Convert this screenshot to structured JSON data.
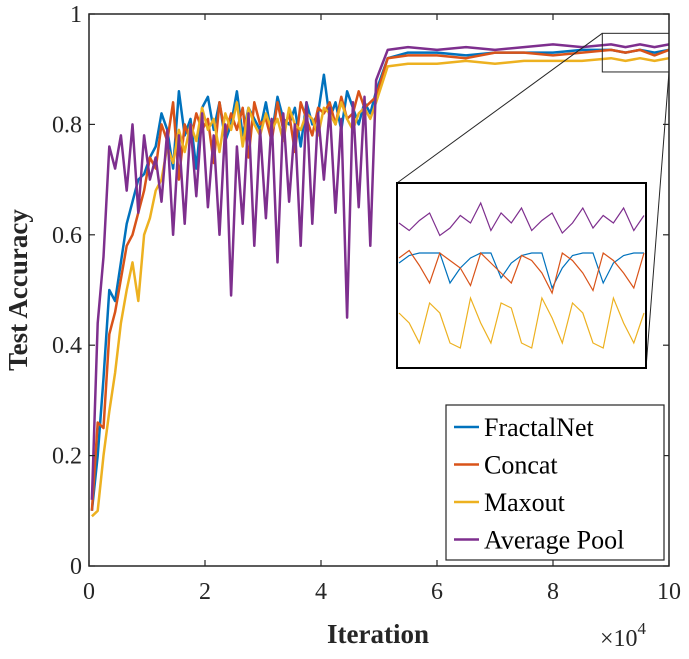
{
  "chart_data": {
    "type": "line",
    "xlabel": "Iteration",
    "ylabel": "Test Accuracy",
    "x_multiplier_label": "×10",
    "x_multiplier_exponent": "4",
    "xlim": [
      0,
      10
    ],
    "ylim": [
      0,
      1
    ],
    "x_ticks": [
      0,
      2,
      4,
      6,
      8,
      10
    ],
    "x_tick_labels": [
      "0",
      "2",
      "4",
      "6",
      "8",
      "10"
    ],
    "y_ticks": [
      0,
      0.2,
      0.4,
      0.6,
      0.8,
      1
    ],
    "y_tick_labels": [
      "0",
      "0.2",
      "0.4",
      "0.6",
      "0.8",
      "1"
    ],
    "legend_position": "bottom-right",
    "zoom_region_x": [
      8.85,
      10
    ],
    "zoom_region_y": [
      0.895,
      0.965
    ],
    "series": [
      {
        "name": "FractalNet",
        "color": "#0072BD",
        "x": [
          0.05,
          0.15,
          0.25,
          0.35,
          0.45,
          0.55,
          0.65,
          0.75,
          0.85,
          0.95,
          1.05,
          1.15,
          1.25,
          1.35,
          1.45,
          1.55,
          1.65,
          1.75,
          1.85,
          1.95,
          2.05,
          2.15,
          2.25,
          2.35,
          2.45,
          2.55,
          2.65,
          2.75,
          2.85,
          2.95,
          3.05,
          3.15,
          3.25,
          3.35,
          3.45,
          3.55,
          3.65,
          3.75,
          3.85,
          3.95,
          4.05,
          4.15,
          4.25,
          4.35,
          4.45,
          4.55,
          4.65,
          4.75,
          4.85,
          4.95,
          5.15,
          5.5,
          6,
          6.5,
          7,
          7.5,
          8,
          8.5,
          9,
          9.25,
          9.5,
          9.75,
          10
        ],
        "values": [
          0.1,
          0.2,
          0.34,
          0.5,
          0.48,
          0.55,
          0.62,
          0.66,
          0.7,
          0.71,
          0.74,
          0.76,
          0.82,
          0.79,
          0.72,
          0.86,
          0.78,
          0.81,
          0.72,
          0.83,
          0.85,
          0.79,
          0.84,
          0.77,
          0.8,
          0.86,
          0.78,
          0.83,
          0.81,
          0.79,
          0.84,
          0.78,
          0.85,
          0.81,
          0.8,
          0.83,
          0.76,
          0.84,
          0.8,
          0.82,
          0.89,
          0.81,
          0.84,
          0.79,
          0.86,
          0.83,
          0.8,
          0.84,
          0.82,
          0.86,
          0.92,
          0.93,
          0.93,
          0.925,
          0.93,
          0.93,
          0.93,
          0.935,
          0.935,
          0.93,
          0.935,
          0.93,
          0.935
        ]
      },
      {
        "name": "Concat",
        "color": "#D95319",
        "x": [
          0.05,
          0.15,
          0.25,
          0.35,
          0.45,
          0.55,
          0.65,
          0.75,
          0.85,
          0.95,
          1.05,
          1.15,
          1.25,
          1.35,
          1.45,
          1.55,
          1.65,
          1.75,
          1.85,
          1.95,
          2.05,
          2.15,
          2.25,
          2.35,
          2.45,
          2.55,
          2.65,
          2.75,
          2.85,
          2.95,
          3.05,
          3.15,
          3.25,
          3.35,
          3.45,
          3.55,
          3.65,
          3.75,
          3.85,
          3.95,
          4.05,
          4.15,
          4.25,
          4.35,
          4.45,
          4.55,
          4.65,
          4.75,
          4.85,
          4.95,
          5.15,
          5.5,
          6,
          6.5,
          7,
          7.5,
          8,
          8.5,
          9,
          9.25,
          9.5,
          9.75,
          10
        ],
        "values": [
          0.1,
          0.26,
          0.25,
          0.42,
          0.46,
          0.52,
          0.58,
          0.6,
          0.64,
          0.68,
          0.74,
          0.72,
          0.8,
          0.77,
          0.84,
          0.7,
          0.8,
          0.77,
          0.82,
          0.79,
          0.81,
          0.73,
          0.84,
          0.78,
          0.82,
          0.79,
          0.83,
          0.74,
          0.84,
          0.8,
          0.81,
          0.77,
          0.84,
          0.79,
          0.82,
          0.75,
          0.84,
          0.81,
          0.78,
          0.83,
          0.82,
          0.84,
          0.8,
          0.85,
          0.81,
          0.82,
          0.86,
          0.83,
          0.84,
          0.85,
          0.92,
          0.925,
          0.925,
          0.92,
          0.93,
          0.93,
          0.925,
          0.93,
          0.935,
          0.93,
          0.935,
          0.925,
          0.935
        ]
      },
      {
        "name": "Maxout",
        "color": "#EDB120",
        "x": [
          0.05,
          0.15,
          0.25,
          0.35,
          0.45,
          0.55,
          0.65,
          0.75,
          0.85,
          0.95,
          1.05,
          1.15,
          1.25,
          1.35,
          1.45,
          1.55,
          1.65,
          1.75,
          1.85,
          1.95,
          2.05,
          2.15,
          2.25,
          2.35,
          2.45,
          2.55,
          2.65,
          2.75,
          2.85,
          2.95,
          3.05,
          3.15,
          3.25,
          3.35,
          3.45,
          3.55,
          3.65,
          3.75,
          3.85,
          3.95,
          4.05,
          4.15,
          4.25,
          4.35,
          4.45,
          4.55,
          4.65,
          4.75,
          4.85,
          4.95,
          5.15,
          5.5,
          6,
          6.5,
          7,
          7.5,
          8,
          8.5,
          9,
          9.25,
          9.5,
          9.75,
          10
        ],
        "values": [
          0.09,
          0.1,
          0.2,
          0.28,
          0.35,
          0.44,
          0.5,
          0.55,
          0.48,
          0.6,
          0.63,
          0.68,
          0.7,
          0.76,
          0.73,
          0.79,
          0.75,
          0.8,
          0.77,
          0.83,
          0.79,
          0.81,
          0.75,
          0.82,
          0.79,
          0.84,
          0.76,
          0.83,
          0.8,
          0.78,
          0.82,
          0.79,
          0.81,
          0.77,
          0.83,
          0.8,
          0.79,
          0.82,
          0.81,
          0.78,
          0.83,
          0.82,
          0.8,
          0.84,
          0.81,
          0.79,
          0.82,
          0.83,
          0.81,
          0.84,
          0.905,
          0.91,
          0.91,
          0.915,
          0.91,
          0.915,
          0.915,
          0.915,
          0.92,
          0.915,
          0.92,
          0.915,
          0.92
        ]
      },
      {
        "name": "Average Pool",
        "color": "#7E2F8E",
        "x": [
          0.05,
          0.15,
          0.25,
          0.35,
          0.45,
          0.55,
          0.65,
          0.75,
          0.85,
          0.95,
          1.05,
          1.15,
          1.25,
          1.35,
          1.45,
          1.55,
          1.65,
          1.75,
          1.85,
          1.95,
          2.05,
          2.15,
          2.25,
          2.35,
          2.45,
          2.55,
          2.65,
          2.75,
          2.85,
          2.95,
          3.05,
          3.15,
          3.25,
          3.35,
          3.45,
          3.55,
          3.65,
          3.75,
          3.85,
          3.95,
          4.05,
          4.15,
          4.25,
          4.35,
          4.45,
          4.55,
          4.65,
          4.75,
          4.85,
          4.95,
          5.15,
          5.5,
          6,
          6.5,
          7,
          7.5,
          8,
          8.5,
          9,
          9.25,
          9.5,
          9.75,
          10
        ],
        "values": [
          0.12,
          0.44,
          0.56,
          0.76,
          0.72,
          0.78,
          0.68,
          0.8,
          0.64,
          0.78,
          0.7,
          0.74,
          0.66,
          0.79,
          0.6,
          0.78,
          0.62,
          0.8,
          0.67,
          0.82,
          0.65,
          0.78,
          0.6,
          0.8,
          0.49,
          0.76,
          0.62,
          0.82,
          0.58,
          0.79,
          0.63,
          0.81,
          0.55,
          0.82,
          0.66,
          0.8,
          0.58,
          0.84,
          0.62,
          0.82,
          0.7,
          0.83,
          0.64,
          0.81,
          0.45,
          0.84,
          0.65,
          0.85,
          0.58,
          0.88,
          0.935,
          0.94,
          0.935,
          0.94,
          0.935,
          0.94,
          0.945,
          0.94,
          0.945,
          0.94,
          0.945,
          0.94,
          0.945
        ]
      }
    ],
    "zoom_series": [
      {
        "name": "FractalNet",
        "values": [
          0.56,
          0.575,
          0.58,
          0.58,
          0.58,
          0.52,
          0.55,
          0.57,
          0.58,
          0.58,
          0.53,
          0.56,
          0.575,
          0.58,
          0.58,
          0.51,
          0.55,
          0.575,
          0.58,
          0.58,
          0.52,
          0.56,
          0.575,
          0.58,
          0.58
        ]
      },
      {
        "name": "Concat",
        "values": [
          0.57,
          0.585,
          0.555,
          0.52,
          0.58,
          0.565,
          0.55,
          0.515,
          0.58,
          0.56,
          0.54,
          0.52,
          0.575,
          0.565,
          0.54,
          0.5,
          0.58,
          0.565,
          0.54,
          0.505,
          0.58,
          0.565,
          0.54,
          0.51,
          0.58
        ]
      },
      {
        "name": "Maxout",
        "values": [
          0.46,
          0.44,
          0.4,
          0.48,
          0.46,
          0.4,
          0.39,
          0.49,
          0.44,
          0.4,
          0.48,
          0.47,
          0.4,
          0.39,
          0.49,
          0.45,
          0.4,
          0.48,
          0.46,
          0.4,
          0.39,
          0.49,
          0.44,
          0.4,
          0.46
        ]
      },
      {
        "name": "Average Pool",
        "values": [
          0.64,
          0.625,
          0.645,
          0.66,
          0.615,
          0.63,
          0.655,
          0.64,
          0.68,
          0.625,
          0.66,
          0.64,
          0.67,
          0.625,
          0.645,
          0.66,
          0.62,
          0.64,
          0.67,
          0.63,
          0.655,
          0.64,
          0.67,
          0.625,
          0.655
        ]
      }
    ]
  }
}
